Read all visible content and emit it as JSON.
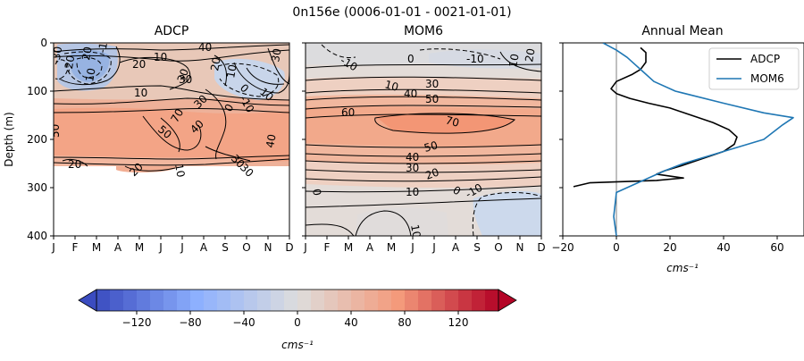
{
  "figure": {
    "title": "0n156e (0006-01-01 - 0021-01-01)",
    "colors": {
      "neg_strong": "#3b4cc0",
      "neutral": "#dddddd",
      "pos_strong": "#b40426",
      "adcp_line": "#000000",
      "mom6_line": "#1f77b4"
    }
  },
  "chart_data": [
    {
      "type": "heatmap",
      "title": "ADCP",
      "ylabel": "Depth (m)",
      "months": [
        "J",
        "F",
        "M",
        "A",
        "M",
        "J",
        "J",
        "A",
        "S",
        "O",
        "N",
        "D"
      ],
      "yticks": [
        0,
        100,
        200,
        300,
        400
      ],
      "ylim": [
        400,
        0
      ],
      "max_depth_observed": 265,
      "contour_labels": [
        "40",
        "10",
        "20",
        "30",
        "10",
        "20",
        "10",
        "30",
        "0",
        "-10",
        "10",
        "30",
        "50",
        "70",
        "40",
        "30",
        "20",
        "50",
        "40",
        "30",
        "20",
        "10",
        "30",
        "20",
        "10",
        "-20",
        "-30",
        "-10",
        "0"
      ]
    },
    {
      "type": "heatmap",
      "title": "MOM6",
      "months": [
        "J",
        "F",
        "M",
        "A",
        "M",
        "J",
        "J",
        "A",
        "S",
        "O",
        "N",
        "D"
      ],
      "ylim": [
        400,
        0
      ],
      "contour_labels": [
        "-10",
        "0",
        "-10",
        "10",
        "20",
        "10",
        "40",
        "30",
        "50",
        "60",
        "70",
        "50",
        "40",
        "30",
        "20",
        "10",
        "0",
        "-10",
        "0",
        "10"
      ]
    },
    {
      "type": "line",
      "title": "Annual Mean",
      "xlabel": "cms⁻¹",
      "xlim": [
        -20,
        70
      ],
      "xticks": [
        -20,
        0,
        20,
        40,
        60
      ],
      "ylim": [
        400,
        0
      ],
      "legend_position": "top-right",
      "series": [
        {
          "name": "ADCP",
          "x": [
            9,
            11,
            11,
            9,
            6,
            0,
            -2,
            0,
            5,
            12,
            20,
            28,
            36,
            42,
            45,
            44,
            40,
            32,
            24,
            18,
            15,
            25,
            15,
            -10,
            -16
          ],
          "y": [
            10,
            20,
            40,
            55,
            65,
            80,
            95,
            105,
            115,
            125,
            135,
            150,
            165,
            180,
            195,
            210,
            225,
            240,
            255,
            265,
            272,
            280,
            285,
            290,
            298
          ]
        },
        {
          "name": "MOM6",
          "x": [
            -5,
            0,
            4,
            7,
            10,
            14,
            22,
            40,
            55,
            66,
            62,
            55,
            40,
            25,
            18,
            10,
            0,
            -1,
            0
          ],
          "y": [
            0,
            15,
            30,
            45,
            60,
            80,
            100,
            125,
            145,
            155,
            170,
            200,
            225,
            250,
            265,
            285,
            310,
            360,
            400
          ]
        }
      ]
    }
  ],
  "colorbar": {
    "label": "cms⁻¹",
    "ticks": [
      -120,
      -80,
      -40,
      0,
      40,
      80,
      120
    ],
    "range": [
      -150,
      150
    ],
    "step": 10
  }
}
